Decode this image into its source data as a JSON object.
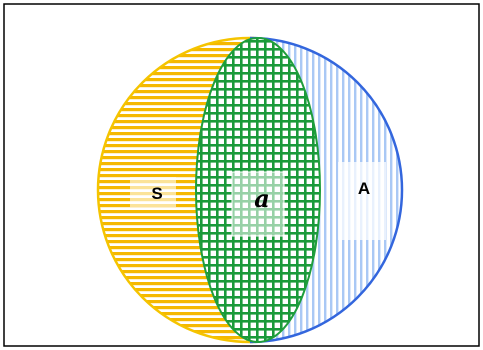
{
  "diagram": {
    "regions": [
      {
        "id": "left",
        "label": "S",
        "color": "#f5b800",
        "pattern": "horizontal-stripes"
      },
      {
        "id": "middle",
        "label": "a",
        "color": "#1a9a3a",
        "pattern": "grid"
      },
      {
        "id": "right",
        "label": "A",
        "color": "#3b6ee8",
        "pattern": "vertical-stripes"
      }
    ],
    "colors": {
      "left_stroke": "#f5c400",
      "left_stripe": "#f5b800",
      "middle_stroke": "#1f9e3c",
      "middle_grid": "#1a9a3a",
      "right_stroke": "#3366dd",
      "right_stripe": "#a9c8f5",
      "frame": "#000000",
      "label_box": "#ffffff"
    }
  }
}
